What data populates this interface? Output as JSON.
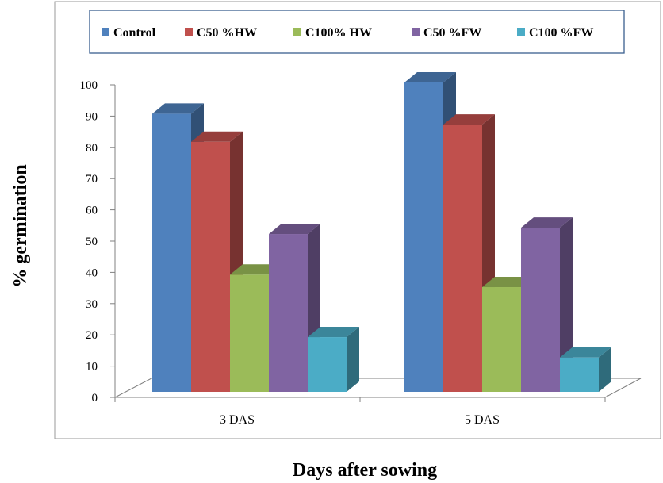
{
  "chart_data": {
    "type": "bar",
    "three_d": true,
    "categories": [
      "3 DAS",
      "5 DAS"
    ],
    "series": [
      {
        "name": "Control",
        "values": [
          89,
          99
        ],
        "color": "#4f81bd"
      },
      {
        "name": "C50 %HW",
        "values": [
          80,
          85.5
        ],
        "color": "#c0504d"
      },
      {
        "name": "C100% HW",
        "values": [
          37.5,
          33.5
        ],
        "color": "#9bbb59"
      },
      {
        "name": "C50 %FW",
        "values": [
          50.5,
          52.5
        ],
        "color": "#8064a2"
      },
      {
        "name": "C100 %FW",
        "values": [
          17.5,
          11
        ],
        "color": "#4bacc6"
      }
    ],
    "xlabel": "Days after sowing",
    "ylabel": "% germination",
    "ylim": [
      0,
      100
    ],
    "yticks": [
      0,
      10,
      20,
      30,
      40,
      50,
      60,
      70,
      80,
      90,
      100
    ],
    "legend_position": "top",
    "grid": false
  }
}
